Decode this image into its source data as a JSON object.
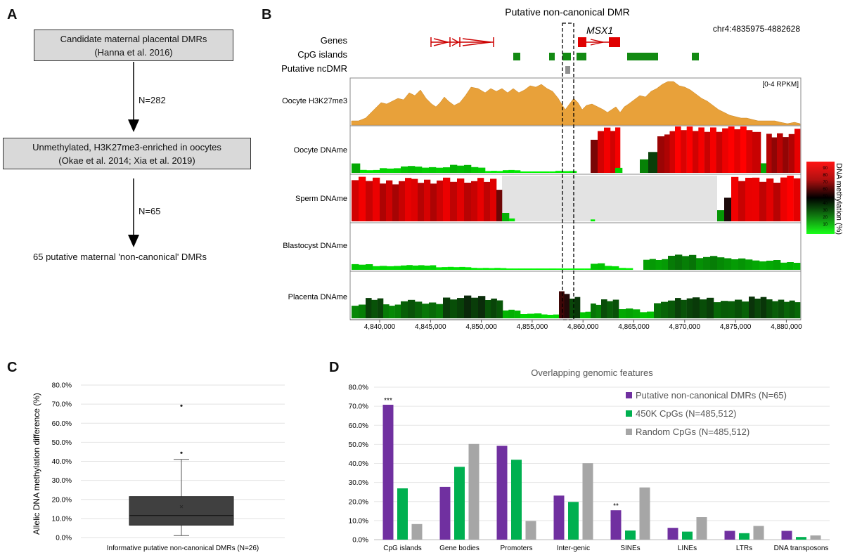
{
  "panel_labels": {
    "a": "A",
    "b": "B",
    "c": "C",
    "d": "D"
  },
  "panel_a": {
    "box1_line1": "Candidate maternal placental DMRs",
    "box1_line2": "(Hanna et al. 2016)",
    "arrow1_label": "N=282",
    "box2_line1": "Unmethylated, H3K27me3-enriched in oocytes",
    "box2_line2": "(Okae et al. 2014; Xia et al. 2019)",
    "arrow2_label": "N=65",
    "result": "65 putative maternal 'non-canonical' DMRs"
  },
  "panel_b": {
    "title": "Putative non-canonical DMR",
    "coords": "chr4:4835975-4882628",
    "gene_name": "MSX1",
    "track_genes": "Genes",
    "track_cpg": "CpG islands",
    "track_ncdmr": "Putative ncDMR",
    "tracks": [
      "Oocyte H3K27me3",
      "Oocyte DNAme",
      "Sperm DNAme",
      "Blastocyst DNAme",
      "Placenta DNAme"
    ],
    "scale_note": "[0-4 RPKM]",
    "x_ticks": [
      "4,840,000",
      "4,845,000",
      "4,850,000",
      "4,855,000",
      "4,860,000",
      "4,865,000",
      "4,870,000",
      "4,875,000",
      "4,880,000"
    ],
    "legend_title": "DNA methylation (%)",
    "legend_ticks": [
      "90",
      "80",
      "70",
      "60",
      "50",
      "40",
      "30",
      "20",
      "10"
    ],
    "colors": {
      "h3k27me3": "#e8a13a",
      "high": "#ee1c1c",
      "low": "#19d119",
      "nodata": "#e3e3e3"
    }
  },
  "chart_data": [
    {
      "type": "box",
      "panel": "C",
      "ylabel": "Allelic DNA methylation difference (%)",
      "xlabel": "Informative putative non-canonical DMRs (N=26)",
      "y_ticks": [
        "0.0%",
        "10.0%",
        "20.0%",
        "30.0%",
        "40.0%",
        "50.0%",
        "60.0%",
        "70.0%",
        "80.0%"
      ],
      "ylim": [
        0,
        80
      ],
      "whisker_low": 1,
      "q1": 6.5,
      "median": 11.5,
      "mean": 16.2,
      "q3": 21.5,
      "whisker_high": 41,
      "outliers": [
        44.5,
        69.2
      ],
      "color": "#404040"
    },
    {
      "type": "bar",
      "panel": "D",
      "title": "Overlapping genomic features",
      "categories": [
        "CpG islands",
        "Gene bodies",
        "Promoters",
        "Inter-genic",
        "SINEs",
        "LINEs",
        "LTRs",
        "DNA transposons"
      ],
      "y_ticks": [
        "0.0%",
        "10.0%",
        "20.0%",
        "30.0%",
        "40.0%",
        "50.0%",
        "60.0%",
        "70.0%",
        "80.0%"
      ],
      "ylim": [
        0,
        80
      ],
      "series": [
        {
          "name": "Putative non-canonical DMRs (N=65)",
          "color": "#7030a0",
          "values": [
            70.8,
            27.7,
            49.2,
            23.1,
            15.4,
            6.2,
            4.6,
            4.6
          ]
        },
        {
          "name": "450K CpGs (N=485,512)",
          "color": "#00b050",
          "values": [
            26.9,
            38.2,
            41.9,
            19.8,
            4.8,
            4.2,
            3.4,
            1.4
          ]
        },
        {
          "name": "Random CpGs (N=485,512)",
          "color": "#a6a6a6",
          "values": [
            8.2,
            50.2,
            9.8,
            40.1,
            27.4,
            11.8,
            7.2,
            2.2
          ]
        }
      ],
      "annotations": [
        {
          "category": "CpG islands",
          "text": "***"
        },
        {
          "category": "SINEs",
          "text": "**"
        }
      ],
      "legend": "top-right"
    }
  ]
}
